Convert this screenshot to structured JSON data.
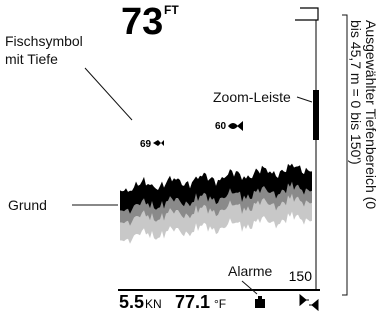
{
  "screen": {
    "depth": "73",
    "depth_unit": "FT",
    "fish": [
      "69",
      "60"
    ],
    "range": "150",
    "speed": "5.5",
    "speed_unit": "KN",
    "temperature": "77.1",
    "temperature_unit": "°F"
  },
  "callouts": {
    "fish_symbol": [
      "Fischsymbol",
      "mit Tiefe"
    ],
    "ground": "Grund",
    "zoom_bar": "Zoom-Leiste",
    "alarms": "Alarme",
    "depth_range": [
      "Ausgewählter Tiefenbereich (0",
      "bis 45,7 m = 0 bis 150')"
    ]
  }
}
